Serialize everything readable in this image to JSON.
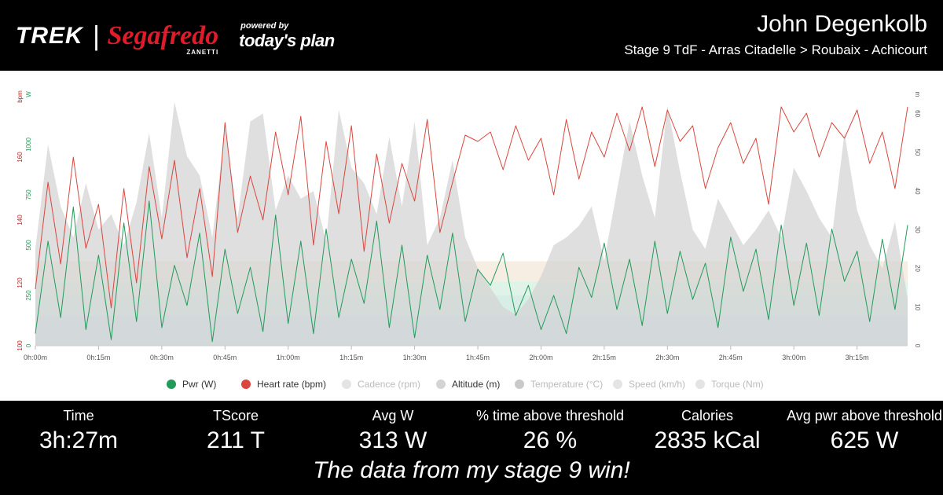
{
  "header": {
    "brand_trek": "TREK",
    "brand_separator": "|",
    "brand_segafredo": "Segafredo",
    "brand_zanetti": "ZANETTI",
    "powered_by": "powered by",
    "todays_plan": "today's plan",
    "rider_name": "John Degenkolb",
    "stage_title": "Stage 9 TdF - Arras Citadelle > Roubaix - Achicourt"
  },
  "chart_data": {
    "type": "line",
    "x_ticks": [
      "0h:00m",
      "0h:15m",
      "0h:30m",
      "0h:45m",
      "1h:00m",
      "1h:15m",
      "1h:30m",
      "1h:45m",
      "2h:00m",
      "2h:15m",
      "2h:30m",
      "2h:45m",
      "3h:00m",
      "3h:15m"
    ],
    "x_range_minutes": [
      0,
      207
    ],
    "axis_units": {
      "hr": "bpm",
      "power": "W",
      "altitude": "m"
    },
    "hr_ticks": [
      100,
      120,
      140,
      160
    ],
    "hr_range": [
      100,
      180
    ],
    "power_ticks": [
      0,
      250,
      500,
      750,
      1000
    ],
    "power_range": [
      0,
      1250
    ],
    "alt_ticks": [
      0,
      10,
      20,
      30,
      40,
      50,
      60
    ],
    "alt_range": [
      0,
      65
    ],
    "legend": [
      {
        "label": "Pwr (W)",
        "color": "#239a5a",
        "active": true
      },
      {
        "label": "Heart rate (bpm)",
        "color": "#d9473e",
        "active": true
      },
      {
        "label": "Cadence (rpm)",
        "color": "#e4e4e4",
        "active": false
      },
      {
        "label": "Altitude (m)",
        "color": "#d4d4d4",
        "active": true
      },
      {
        "label": "Temperature (°C)",
        "color": "#c9c9c9",
        "active": false
      },
      {
        "label": "Speed (km/h)",
        "color": "#e4e4e4",
        "active": false
      },
      {
        "label": "Torque (Nm)",
        "color": "#e4e4e4",
        "active": false
      }
    ],
    "series": [
      {
        "name": "Heart rate (bpm)",
        "axis": "hr",
        "color": "#d9473e",
        "x": [
          0,
          3,
          6,
          9,
          12,
          15,
          18,
          21,
          24,
          27,
          30,
          33,
          36,
          39,
          42,
          45,
          48,
          51,
          54,
          57,
          60,
          63,
          66,
          69,
          72,
          75,
          78,
          81,
          84,
          87,
          90,
          93,
          96,
          99,
          102,
          105,
          108,
          111,
          114,
          117,
          120,
          123,
          126,
          129,
          132,
          135,
          138,
          141,
          144,
          147,
          150,
          153,
          156,
          159,
          162,
          165,
          168,
          171,
          174,
          177,
          180,
          183,
          186,
          189,
          192,
          195,
          198,
          201,
          204,
          207
        ],
        "y": [
          118,
          152,
          126,
          160,
          131,
          145,
          112,
          150,
          120,
          157,
          134,
          159,
          128,
          150,
          122,
          171,
          136,
          154,
          140,
          168,
          148,
          173,
          132,
          165,
          142,
          170,
          130,
          161,
          139,
          158,
          146,
          172,
          136,
          152,
          167,
          165,
          168,
          156,
          170,
          159,
          166,
          148,
          172,
          153,
          168,
          160,
          174,
          162,
          176,
          157,
          175,
          165,
          170,
          150,
          163,
          171,
          158,
          166,
          145,
          176,
          168,
          174,
          160,
          171,
          166,
          175,
          158,
          168,
          150,
          176
        ]
      },
      {
        "name": "Pwr (W)",
        "axis": "power",
        "color": "#239a5a",
        "x": [
          0,
          3,
          6,
          9,
          12,
          15,
          18,
          21,
          24,
          27,
          30,
          33,
          36,
          39,
          42,
          45,
          48,
          51,
          54,
          57,
          60,
          63,
          66,
          69,
          72,
          75,
          78,
          81,
          84,
          87,
          90,
          93,
          96,
          99,
          102,
          105,
          108,
          111,
          114,
          117,
          120,
          123,
          126,
          129,
          132,
          135,
          138,
          141,
          144,
          147,
          150,
          153,
          156,
          159,
          162,
          165,
          168,
          171,
          174,
          177,
          180,
          183,
          186,
          189,
          192,
          195,
          198,
          201,
          204,
          207
        ],
        "y": [
          60,
          520,
          140,
          690,
          80,
          450,
          30,
          610,
          120,
          720,
          90,
          400,
          200,
          560,
          20,
          480,
          160,
          390,
          70,
          650,
          110,
          520,
          60,
          580,
          140,
          430,
          210,
          620,
          90,
          500,
          40,
          450,
          180,
          560,
          120,
          380,
          300,
          460,
          150,
          300,
          80,
          250,
          60,
          390,
          240,
          510,
          180,
          430,
          100,
          520,
          160,
          470,
          230,
          410,
          90,
          540,
          270,
          480,
          130,
          600,
          200,
          510,
          150,
          580,
          320,
          470,
          120,
          530,
          180,
          600
        ]
      },
      {
        "name": "Altitude (m)",
        "axis": "altitude",
        "color": "#d4d4d4",
        "x": [
          0,
          3,
          6,
          9,
          12,
          15,
          18,
          21,
          24,
          27,
          30,
          33,
          36,
          39,
          42,
          45,
          48,
          51,
          54,
          57,
          60,
          63,
          66,
          69,
          72,
          75,
          78,
          81,
          84,
          87,
          90,
          93,
          96,
          99,
          102,
          105,
          108,
          111,
          114,
          117,
          120,
          123,
          126,
          129,
          132,
          135,
          138,
          141,
          144,
          147,
          150,
          153,
          156,
          159,
          162,
          165,
          168,
          171,
          174,
          177,
          180,
          183,
          186,
          189,
          192,
          195,
          198,
          201,
          204,
          207
        ],
        "y": [
          25,
          52,
          36,
          28,
          42,
          30,
          34,
          26,
          37,
          55,
          33,
          63,
          49,
          44,
          28,
          56,
          33,
          58,
          60,
          35,
          44,
          38,
          40,
          27,
          61,
          46,
          42,
          34,
          54,
          36,
          58,
          26,
          33,
          48,
          28,
          20,
          15,
          10,
          8,
          12,
          18,
          26,
          28,
          31,
          36,
          22,
          40,
          58,
          44,
          33,
          62,
          45,
          30,
          25,
          38,
          32,
          26,
          30,
          35,
          28,
          46,
          40,
          33,
          28,
          55,
          35,
          26,
          20,
          32,
          12
        ]
      }
    ]
  },
  "stats": [
    {
      "label": "Time",
      "value": "3h:27m"
    },
    {
      "label": "TScore",
      "value": "211 T"
    },
    {
      "label": "Avg W",
      "value": "313 W"
    },
    {
      "label": "% time above threshold",
      "value": "26 %"
    },
    {
      "label": "Calories",
      "value": "2835 kCal"
    },
    {
      "label": "Avg pwr above threshold",
      "value": "625 W"
    }
  ],
  "caption": "The data from my stage 9 win!"
}
